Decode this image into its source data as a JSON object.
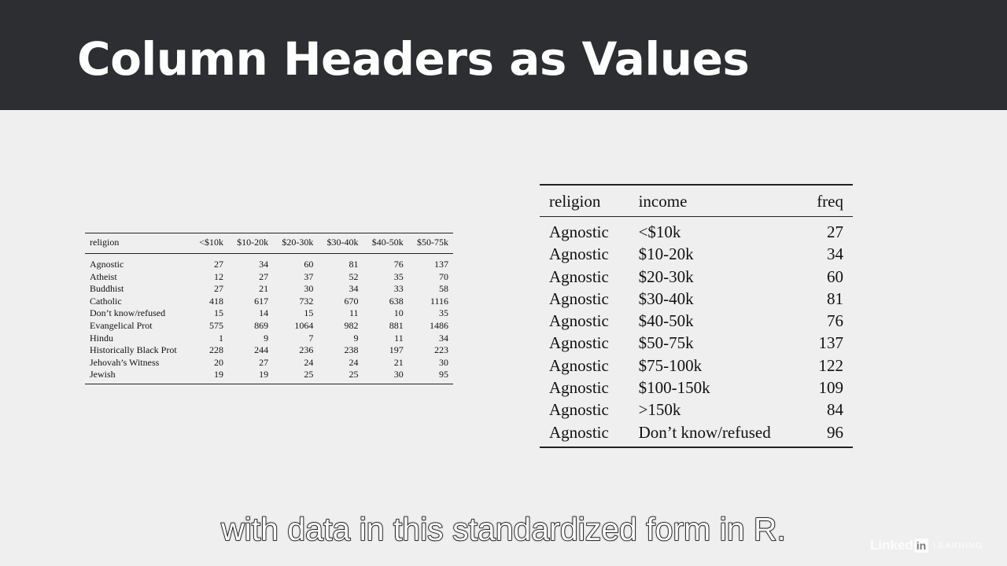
{
  "slide": {
    "title": "Column Headers as Values"
  },
  "wide_table": {
    "headers": [
      "religion",
      "<$10k",
      "$10-20k",
      "$20-30k",
      "$30-40k",
      "$40-50k",
      "$50-75k"
    ],
    "rows": [
      [
        "Agnostic",
        "27",
        "34",
        "60",
        "81",
        "76",
        "137"
      ],
      [
        "Atheist",
        "12",
        "27",
        "37",
        "52",
        "35",
        "70"
      ],
      [
        "Buddhist",
        "27",
        "21",
        "30",
        "34",
        "33",
        "58"
      ],
      [
        "Catholic",
        "418",
        "617",
        "732",
        "670",
        "638",
        "1116"
      ],
      [
        "Don’t know/refused",
        "15",
        "14",
        "15",
        "11",
        "10",
        "35"
      ],
      [
        "Evangelical Prot",
        "575",
        "869",
        "1064",
        "982",
        "881",
        "1486"
      ],
      [
        "Hindu",
        "1",
        "9",
        "7",
        "9",
        "11",
        "34"
      ],
      [
        "Historically Black Prot",
        "228",
        "244",
        "236",
        "238",
        "197",
        "223"
      ],
      [
        "Jehovah’s Witness",
        "20",
        "27",
        "24",
        "24",
        "21",
        "30"
      ],
      [
        "Jewish",
        "19",
        "19",
        "25",
        "25",
        "30",
        "95"
      ]
    ]
  },
  "tidy_table": {
    "headers": [
      "religion",
      "income",
      "freq"
    ],
    "rows": [
      [
        "Agnostic",
        "<$10k",
        "27"
      ],
      [
        "Agnostic",
        "$10-20k",
        "34"
      ],
      [
        "Agnostic",
        "$20-30k",
        "60"
      ],
      [
        "Agnostic",
        "$30-40k",
        "81"
      ],
      [
        "Agnostic",
        "$40-50k",
        "76"
      ],
      [
        "Agnostic",
        "$50-75k",
        "137"
      ],
      [
        "Agnostic",
        "$75-100k",
        "122"
      ],
      [
        "Agnostic",
        "$100-150k",
        "109"
      ],
      [
        "Agnostic",
        ">150k",
        "84"
      ],
      [
        "Agnostic",
        "Don’t know/refused",
        "96"
      ]
    ]
  },
  "caption": {
    "text": "with data in this standardized form in R."
  },
  "brand": {
    "linked": "Linked",
    "in": "in",
    "learning": "LEARNING"
  },
  "colors": {
    "header_bg": "#2d2e31",
    "slide_bg": "#efefef",
    "text": "#111111"
  }
}
